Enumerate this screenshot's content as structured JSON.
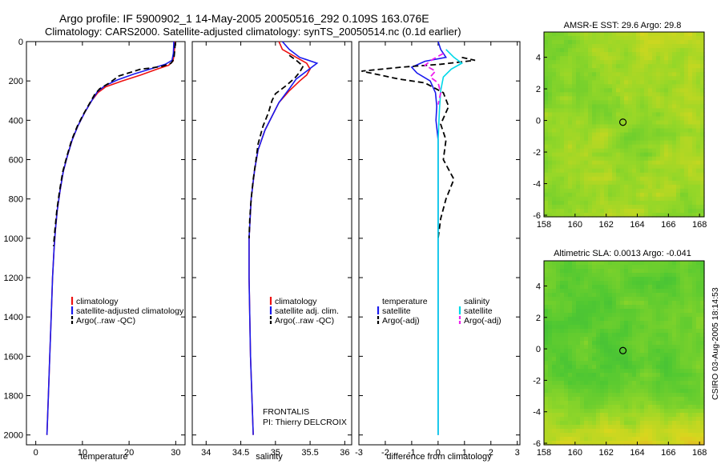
{
  "header": {
    "line1": "Argo profile: IF 5900902_1 14-May-2005 20050516_292 0.109S 163.076E",
    "line2": "Climatology: CARS2000. Satellite-adjusted climatology: synTS_20050514.nc (0.1d earlier)"
  },
  "side_stamp": "CSIRO 03-Aug-2005 18:14:53",
  "colors": {
    "climatology": "#ee1111",
    "satellite": "#1a1aee",
    "argo": "#000000",
    "salinity_satellite": "#00d8e8",
    "salinity_argo": "#ee22ee"
  },
  "chart_data": [
    {
      "type": "line",
      "xlabel": "temperature",
      "ylabel": "",
      "xlim": [
        -2,
        32
      ],
      "ylim": [
        2050,
        0
      ],
      "xticks": [
        0,
        10,
        20,
        30
      ],
      "yticks": [
        0,
        200,
        400,
        600,
        800,
        1000,
        1200,
        1400,
        1600,
        1800,
        2000
      ],
      "legend": [
        "climatology",
        "satellite-adjusted climatology",
        "Argo(..raw -QC)"
      ],
      "series": [
        {
          "name": "climatology",
          "color": "#ee1111",
          "dash": false,
          "points": [
            [
              29.8,
              0
            ],
            [
              29.7,
              60
            ],
            [
              29.4,
              100
            ],
            [
              28.5,
              120
            ],
            [
              26,
              140
            ],
            [
              22.5,
              170
            ],
            [
              18.5,
              200
            ],
            [
              15,
              230
            ],
            [
              13.3,
              260
            ],
            [
              12,
              300
            ],
            [
              10.5,
              360
            ],
            [
              9,
              430
            ],
            [
              7.8,
              500
            ],
            [
              6.8,
              580
            ],
            [
              5.9,
              660
            ],
            [
              5.2,
              760
            ],
            [
              4.6,
              860
            ],
            [
              4.2,
              960
            ],
            [
              3.9,
              1060
            ],
            [
              3.6,
              1200
            ],
            [
              3.3,
              1400
            ],
            [
              3.0,
              1600
            ],
            [
              2.7,
              1800
            ],
            [
              2.4,
              2000
            ]
          ]
        },
        {
          "name": "satellite-adjusted climatology",
          "color": "#1a1aee",
          "dash": false,
          "points": [
            [
              29.6,
              0
            ],
            [
              29.5,
              60
            ],
            [
              29.2,
              95
            ],
            [
              27.8,
              115
            ],
            [
              24.5,
              140
            ],
            [
              21,
              165
            ],
            [
              17.5,
              195
            ],
            [
              14.8,
              225
            ],
            [
              13.2,
              255
            ],
            [
              12,
              300
            ],
            [
              10.5,
              360
            ],
            [
              9,
              430
            ],
            [
              7.8,
              500
            ],
            [
              6.8,
              580
            ],
            [
              5.9,
              660
            ],
            [
              5.2,
              760
            ],
            [
              4.6,
              860
            ],
            [
              4.2,
              960
            ],
            [
              3.9,
              1060
            ],
            [
              3.6,
              1200
            ],
            [
              3.3,
              1400
            ],
            [
              3.0,
              1600
            ],
            [
              2.7,
              1800
            ],
            [
              2.4,
              2000
            ]
          ]
        },
        {
          "name": "Argo(..raw -QC)",
          "color": "#000000",
          "dash": true,
          "points": [
            [
              29.9,
              5
            ],
            [
              29.8,
              40
            ],
            [
              29.6,
              90
            ],
            [
              29.0,
              110
            ],
            [
              27.2,
              125
            ],
            [
              24.5,
              135
            ],
            [
              22.5,
              140
            ],
            [
              20.5,
              155
            ],
            [
              17.8,
              175
            ],
            [
              15.8,
              210
            ],
            [
              13.7,
              240
            ],
            [
              12.6,
              270
            ],
            [
              11.4,
              320
            ],
            [
              10.2,
              370
            ],
            [
              8.9,
              430
            ],
            [
              7.7,
              500
            ],
            [
              6.7,
              580
            ],
            [
              5.8,
              660
            ],
            [
              5.1,
              760
            ],
            [
              4.5,
              860
            ],
            [
              4.1,
              960
            ],
            [
              3.8,
              1040
            ]
          ]
        }
      ]
    },
    {
      "type": "line",
      "xlabel": "salinity",
      "xlim": [
        33.8,
        36.1
      ],
      "ylim": [
        2050,
        0
      ],
      "xticks": [
        34,
        34.5,
        35,
        35.5,
        36
      ],
      "legend": [
        "climatology",
        "satellite adj. clim.",
        "Argo(..raw -QC)"
      ],
      "note_lines": [
        "FRONTALIS",
        "PI: Thierry DELCROIX"
      ],
      "series": [
        {
          "name": "climatology",
          "color": "#ee1111",
          "dash": false,
          "points": [
            [
              35.05,
              0
            ],
            [
              35.1,
              40
            ],
            [
              35.3,
              80
            ],
            [
              35.45,
              110
            ],
            [
              35.5,
              140
            ],
            [
              35.45,
              170
            ],
            [
              35.35,
              200
            ],
            [
              35.2,
              250
            ],
            [
              35.05,
              310
            ],
            [
              34.95,
              380
            ],
            [
              34.85,
              450
            ],
            [
              34.75,
              550
            ],
            [
              34.7,
              650
            ],
            [
              34.65,
              800
            ],
            [
              34.62,
              1000
            ],
            [
              34.62,
              1200
            ],
            [
              34.63,
              1400
            ],
            [
              34.64,
              1600
            ],
            [
              34.66,
              1800
            ],
            [
              34.68,
              2000
            ]
          ]
        },
        {
          "name": "satellite adj. clim.",
          "color": "#1a1aee",
          "dash": false,
          "points": [
            [
              35.1,
              0
            ],
            [
              35.2,
              40
            ],
            [
              35.35,
              80
            ],
            [
              35.6,
              110
            ],
            [
              35.45,
              150
            ],
            [
              35.3,
              190
            ],
            [
              35.2,
              240
            ],
            [
              35.05,
              310
            ],
            [
              34.95,
              380
            ],
            [
              34.85,
              450
            ],
            [
              34.75,
              550
            ],
            [
              34.7,
              650
            ],
            [
              34.65,
              800
            ],
            [
              34.62,
              1000
            ],
            [
              34.62,
              1200
            ],
            [
              34.63,
              1400
            ],
            [
              34.64,
              1600
            ],
            [
              34.66,
              1800
            ],
            [
              34.68,
              2000
            ]
          ]
        },
        {
          "name": "Argo(..raw -QC)",
          "color": "#000000",
          "dash": true,
          "points": [
            [
              35.2,
              70
            ],
            [
              35.3,
              95
            ],
            [
              35.4,
              125
            ],
            [
              35.35,
              155
            ],
            [
              35.28,
              185
            ],
            [
              35.15,
              225
            ],
            [
              35.0,
              265
            ],
            [
              34.95,
              300
            ],
            [
              34.9,
              360
            ],
            [
              34.82,
              430
            ],
            [
              34.75,
              520
            ],
            [
              34.72,
              600
            ],
            [
              34.68,
              700
            ],
            [
              34.65,
              800
            ],
            [
              34.63,
              900
            ],
            [
              34.62,
              1000
            ]
          ]
        }
      ]
    },
    {
      "type": "line",
      "xlabel": "difference from climatology",
      "xlim": [
        -3,
        3.1
      ],
      "ylim": [
        2050,
        0
      ],
      "xticks": [
        -3,
        -2,
        -1,
        0,
        1,
        2,
        3
      ],
      "legend_left": [
        "temperature",
        "satellite",
        "Argo(-adj)"
      ],
      "legend_right": [
        "salinity",
        "satellite",
        "Argo(-adj)"
      ],
      "series": [
        {
          "name": "satellite",
          "color": "#1a1aee",
          "dash": false,
          "points": [
            [
              0,
              0
            ],
            [
              0.1,
              40
            ],
            [
              0.3,
              80
            ],
            [
              -0.5,
              100
            ],
            [
              -1.0,
              130
            ],
            [
              -0.8,
              160
            ],
            [
              -0.3,
              200
            ],
            [
              -0.1,
              260
            ],
            [
              -0.05,
              330
            ],
            [
              -0.08,
              400
            ],
            [
              0,
              500
            ],
            [
              0,
              2000
            ]
          ]
        },
        {
          "name": "Argo(-adj)",
          "color": "#000000",
          "dash": true,
          "points": [
            [
              0.9,
              80
            ],
            [
              1.4,
              95
            ],
            [
              0.1,
              115
            ],
            [
              -1.4,
              130
            ],
            [
              -2.9,
              150
            ],
            [
              -2.2,
              170
            ],
            [
              -1.5,
              190
            ],
            [
              -0.5,
              210
            ],
            [
              0.2,
              260
            ],
            [
              0.4,
              330
            ],
            [
              0.1,
              420
            ],
            [
              0.3,
              500
            ],
            [
              0.2,
              600
            ],
            [
              0.6,
              700
            ],
            [
              0.3,
              800
            ],
            [
              0.1,
              900
            ],
            [
              0,
              1000
            ]
          ]
        },
        {
          "name": "satellite",
          "color": "#00d8e8",
          "dash": false,
          "points": [
            [
              0.3,
              40
            ],
            [
              0.6,
              80
            ],
            [
              0.9,
              110
            ],
            [
              0.5,
              140
            ],
            [
              0.2,
              180
            ],
            [
              0.1,
              250
            ],
            [
              0.05,
              350
            ],
            [
              0,
              500
            ],
            [
              0,
              2000
            ]
          ]
        },
        {
          "name": "Argo(-adj)",
          "color": "#ee22ee",
          "dash": true,
          "points": [
            [
              0.2,
              60
            ],
            [
              -0.2,
              90
            ],
            [
              -0.5,
              120
            ],
            [
              -0.1,
              150
            ],
            [
              -0.3,
              180
            ],
            [
              0,
              210
            ],
            [
              0.1,
              260
            ],
            [
              0,
              320
            ]
          ]
        }
      ]
    },
    {
      "type": "heatmap",
      "title": "AMSR-E SST: 29.6 Argo: 29.8",
      "xlim": [
        158,
        168.3
      ],
      "ylim": [
        -6.1,
        5.6
      ],
      "xticks": [
        158,
        160,
        162,
        164,
        166,
        168
      ],
      "yticks": [
        -6,
        -4,
        -2,
        0,
        2,
        4
      ],
      "marker": [
        163.076,
        -0.109
      ]
    },
    {
      "type": "heatmap",
      "title": "Altimetric SLA: 0.0013 Argo: -0.041",
      "xlim": [
        158,
        168.3
      ],
      "ylim": [
        -6.1,
        5.6
      ],
      "xticks": [
        158,
        160,
        162,
        164,
        166,
        168
      ],
      "yticks": [
        -6,
        -4,
        -2,
        0,
        2,
        4
      ],
      "marker": [
        163.076,
        -0.109
      ]
    }
  ]
}
